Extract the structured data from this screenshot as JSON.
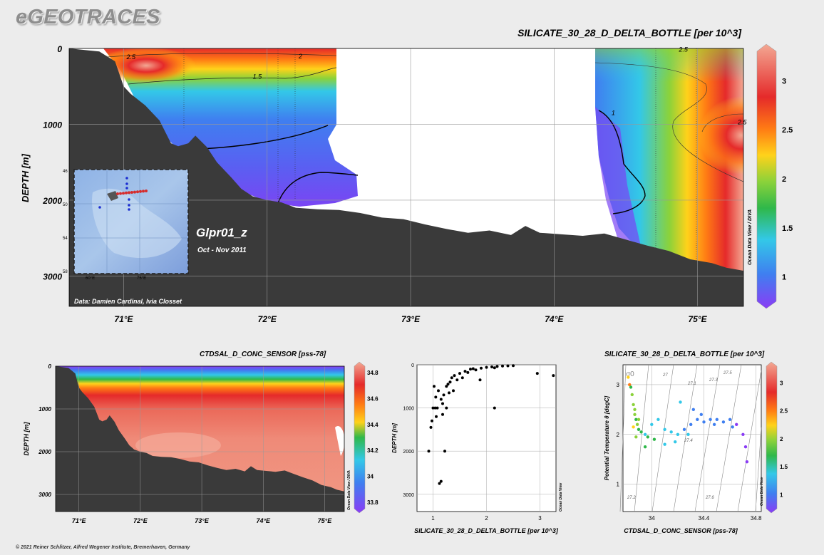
{
  "brand": "eGEOTRACES",
  "footer": "© 2021 Reiner Schlitzer, Alfred Wegener Institute, Bremerhaven, Germany",
  "colors": {
    "bathymetry": "#3a3a3a",
    "scale": [
      "#8a3cf5",
      "#3f7ff0",
      "#33c8e8",
      "#2fb84a",
      "#8bd23a",
      "#ffd21a",
      "#ff7b14",
      "#e52a2a",
      "#f3a893"
    ]
  },
  "chart_data": [
    {
      "id": "main-section",
      "type": "heatmap",
      "title": "SILICATE_30_28_D_DELTA_BOTTLE [per 10^3]",
      "xlabel": "",
      "ylabel": "DEPTH [m]",
      "xlim": [
        70.62,
        75.32
      ],
      "ylim": [
        3400,
        0
      ],
      "xticks": [
        {
          "v": 71,
          "label": "71°E"
        },
        {
          "v": 72,
          "label": "72°E"
        },
        {
          "v": 73,
          "label": "73°E"
        },
        {
          "v": 74,
          "label": "74°E"
        },
        {
          "v": 75,
          "label": "75°E"
        }
      ],
      "yticks": [
        {
          "v": 0,
          "label": "0"
        },
        {
          "v": 1000,
          "label": "1000"
        },
        {
          "v": 2000,
          "label": "2000"
        },
        {
          "v": 3000,
          "label": "3000"
        }
      ],
      "colorbar": {
        "min": 0.75,
        "max": 3.3,
        "ticks": [
          "1",
          "1.5",
          "2",
          "2.5",
          "3"
        ],
        "tick_values": [
          1,
          1.5,
          2,
          2.5,
          3
        ]
      },
      "contour_labels": [
        {
          "x": 71.02,
          "y": 140,
          "label": "2.5"
        },
        {
          "x": 71.9,
          "y": 400,
          "label": "1.5"
        },
        {
          "x": 72.22,
          "y": 130,
          "label": "2"
        },
        {
          "x": 74.87,
          "y": 40,
          "label": "2.5"
        },
        {
          "x": 74.4,
          "y": 880,
          "label": "1"
        },
        {
          "x": 75.28,
          "y": 1000,
          "label": "2.5"
        }
      ],
      "bathymetry": [
        [
          70.62,
          0
        ],
        [
          70.83,
          40
        ],
        [
          70.94,
          170
        ],
        [
          71.0,
          500
        ],
        [
          71.05,
          600
        ],
        [
          71.15,
          750
        ],
        [
          71.25,
          950
        ],
        [
          71.33,
          1250
        ],
        [
          71.38,
          1290
        ],
        [
          71.45,
          1250
        ],
        [
          71.5,
          1150
        ],
        [
          71.58,
          1300
        ],
        [
          71.65,
          1500
        ],
        [
          71.75,
          1700
        ],
        [
          71.82,
          1850
        ],
        [
          71.9,
          1950
        ],
        [
          72.0,
          2000
        ],
        [
          72.1,
          2030
        ],
        [
          72.2,
          2100
        ],
        [
          72.35,
          2120
        ],
        [
          72.5,
          2130
        ],
        [
          72.65,
          2170
        ],
        [
          72.8,
          2230
        ],
        [
          72.95,
          2250
        ],
        [
          73.1,
          2320
        ],
        [
          73.25,
          2380
        ],
        [
          73.4,
          2430
        ],
        [
          73.55,
          2400
        ],
        [
          73.7,
          2460
        ],
        [
          73.8,
          2340
        ],
        [
          73.9,
          2430
        ],
        [
          74.05,
          2450
        ],
        [
          74.2,
          2470
        ],
        [
          74.35,
          2440
        ],
        [
          74.5,
          2520
        ],
        [
          74.65,
          2600
        ],
        [
          74.8,
          2670
        ],
        [
          74.95,
          2780
        ],
        [
          75.1,
          2830
        ],
        [
          75.2,
          2890
        ],
        [
          75.32,
          2930
        ]
      ],
      "inset": {
        "title": "Glpr01_z",
        "date": "Oct - Nov 2011",
        "lat_labels": [
          "46",
          "50",
          "54",
          "58"
        ],
        "lon_labels": [
          "60°E",
          "75°E"
        ]
      },
      "credit": "Data: Damien Cardinal, Ivia Closset",
      "side_label": "Ocean Data View / DIVA"
    },
    {
      "id": "salinity-section",
      "type": "heatmap",
      "title": "CTDSAL_D_CONC_SENSOR [pss-78]",
      "xlabel": "",
      "ylabel": "DEPTH [m]",
      "xlim": [
        70.62,
        75.32
      ],
      "ylim": [
        3400,
        0
      ],
      "xticks": [
        {
          "v": 71,
          "label": "71°E"
        },
        {
          "v": 72,
          "label": "72°E"
        },
        {
          "v": 73,
          "label": "73°E"
        },
        {
          "v": 74,
          "label": "74°E"
        },
        {
          "v": 75,
          "label": "75°E"
        }
      ],
      "yticks": [
        {
          "v": 0,
          "label": "0"
        },
        {
          "v": 1000,
          "label": "1000"
        },
        {
          "v": 2000,
          "label": "2000"
        },
        {
          "v": 3000,
          "label": "3000"
        }
      ],
      "colorbar": {
        "min": 33.75,
        "max": 34.85,
        "ticks": [
          "33.8",
          "34",
          "34.2",
          "34.4",
          "34.6",
          "34.8"
        ],
        "tick_values": [
          33.8,
          34.0,
          34.2,
          34.4,
          34.6,
          34.8
        ]
      },
      "side_label": "Ocean Data View / DIVA"
    },
    {
      "id": "profile-scatter",
      "type": "scatter",
      "title": "",
      "xlabel": "SILICATE_30_28_D_DELTA_BOTTLE [per 10^3]",
      "ylabel": "DEPTH [m]",
      "xlim": [
        0.7,
        3.3
      ],
      "ylim": [
        3400,
        0
      ],
      "xticks": [
        {
          "v": 1,
          "label": "1"
        },
        {
          "v": 2,
          "label": "2"
        },
        {
          "v": 3,
          "label": "3"
        }
      ],
      "yticks": [
        {
          "v": 0,
          "label": "0"
        },
        {
          "v": 1000,
          "label": "1000"
        },
        {
          "v": 2000,
          "label": "2000"
        },
        {
          "v": 3000,
          "label": "3000"
        }
      ],
      "side_label": "Ocean Data View",
      "points": [
        [
          0.96,
          1450
        ],
        [
          0.98,
          1300
        ],
        [
          1.0,
          1000
        ],
        [
          1.02,
          500
        ],
        [
          1.04,
          1000
        ],
        [
          1.05,
          750
        ],
        [
          1.08,
          1000
        ],
        [
          1.1,
          600
        ],
        [
          1.12,
          2750
        ],
        [
          1.15,
          2700
        ],
        [
          1.15,
          800
        ],
        [
          1.18,
          900
        ],
        [
          1.2,
          700
        ],
        [
          1.22,
          2000
        ],
        [
          1.25,
          1000
        ],
        [
          1.25,
          500
        ],
        [
          1.28,
          450
        ],
        [
          1.3,
          650
        ],
        [
          1.32,
          400
        ],
        [
          1.35,
          300
        ],
        [
          1.38,
          600
        ],
        [
          1.4,
          250
        ],
        [
          1.45,
          350
        ],
        [
          1.5,
          200
        ],
        [
          1.55,
          300
        ],
        [
          1.6,
          150
        ],
        [
          1.7,
          100
        ],
        [
          1.8,
          120
        ],
        [
          1.9,
          80
        ],
        [
          2.0,
          60
        ],
        [
          2.1,
          50
        ],
        [
          2.2,
          40
        ],
        [
          2.3,
          30
        ],
        [
          2.5,
          20
        ],
        [
          1.65,
          180
        ],
        [
          1.75,
          90
        ],
        [
          2.15,
          70
        ],
        [
          2.4,
          25
        ],
        [
          1.88,
          350
        ],
        [
          2.15,
          1000
        ],
        [
          2.95,
          200
        ],
        [
          3.25,
          250
        ],
        [
          0.92,
          2000
        ],
        [
          1.06,
          1200
        ],
        [
          1.18,
          1150
        ]
      ]
    },
    {
      "id": "ts-diagram",
      "type": "scatter",
      "title": "SILICATE_30_28_D_DELTA_BOTTLE [per 10^3]",
      "xlabel": "CTDSAL_D_CONC_SENSOR [pss-78]",
      "ylabel": "Potential Temperature θ [degC]",
      "xlim": [
        33.78,
        34.84
      ],
      "ylim": [
        0.45,
        3.4
      ],
      "xticks": [
        {
          "v": 34,
          "label": "34"
        },
        {
          "v": 34.4,
          "label": "34.4"
        },
        {
          "v": 34.8,
          "label": "34.8"
        }
      ],
      "yticks": [
        {
          "v": 1,
          "label": "1"
        },
        {
          "v": 2,
          "label": "2"
        },
        {
          "v": 3,
          "label": "3"
        }
      ],
      "sigma_label": "σ0",
      "isopycnal_labels": [
        "27",
        "27.1",
        "27.2",
        "27.3",
        "27.4",
        "27.5",
        "27.6"
      ],
      "colorbar": {
        "min": 0.75,
        "max": 3.3,
        "ticks": [
          "1",
          "1.5",
          "2",
          "2.5",
          "3"
        ],
        "tick_values": [
          1,
          1.5,
          2,
          2.5,
          3
        ]
      },
      "side_label": "Ocean Data View",
      "points": [
        [
          33.82,
          3.15,
          2.4
        ],
        [
          33.83,
          3.0,
          2.7
        ],
        [
          33.84,
          2.95,
          1.8
        ],
        [
          33.85,
          2.8,
          2.0
        ],
        [
          33.86,
          2.6,
          2.1
        ],
        [
          33.87,
          2.5,
          2.0
        ],
        [
          33.87,
          2.4,
          1.9
        ],
        [
          33.88,
          2.3,
          1.8
        ],
        [
          33.89,
          2.2,
          1.9
        ],
        [
          33.9,
          2.1,
          1.7
        ],
        [
          33.92,
          2.05,
          1.6
        ],
        [
          33.95,
          2.0,
          1.5
        ],
        [
          33.97,
          1.95,
          1.6
        ],
        [
          34.0,
          2.2,
          1.5
        ],
        [
          34.05,
          2.3,
          1.4
        ],
        [
          34.1,
          2.1,
          1.3
        ],
        [
          34.15,
          2.05,
          1.4
        ],
        [
          34.2,
          2.0,
          1.3
        ],
        [
          34.25,
          2.1,
          1.2
        ],
        [
          34.3,
          2.2,
          1.2
        ],
        [
          34.35,
          2.3,
          1.1
        ],
        [
          34.4,
          2.25,
          1.0
        ],
        [
          34.45,
          2.3,
          1.1
        ],
        [
          34.5,
          2.3,
          1.0
        ],
        [
          34.55,
          2.25,
          1.0
        ],
        [
          34.6,
          2.3,
          0.95
        ],
        [
          34.65,
          2.2,
          0.9
        ],
        [
          34.7,
          2.0,
          0.85
        ],
        [
          34.72,
          1.75,
          0.85
        ],
        [
          34.73,
          1.45,
          0.85
        ],
        [
          34.32,
          2.5,
          1.2
        ],
        [
          34.38,
          2.4,
          1.15
        ],
        [
          34.22,
          2.65,
          1.3
        ],
        [
          34.18,
          1.85,
          1.4
        ],
        [
          34.1,
          1.8,
          1.5
        ],
        [
          33.95,
          1.75,
          1.6
        ],
        [
          33.9,
          2.3,
          2.0
        ],
        [
          33.86,
          2.15,
          2.2
        ],
        [
          33.88,
          1.95,
          2.1
        ],
        [
          34.02,
          1.9,
          1.6
        ],
        [
          34.28,
          2.0,
          1.25
        ],
        [
          34.48,
          2.2,
          1.05
        ],
        [
          34.62,
          2.15,
          0.95
        ]
      ]
    }
  ]
}
